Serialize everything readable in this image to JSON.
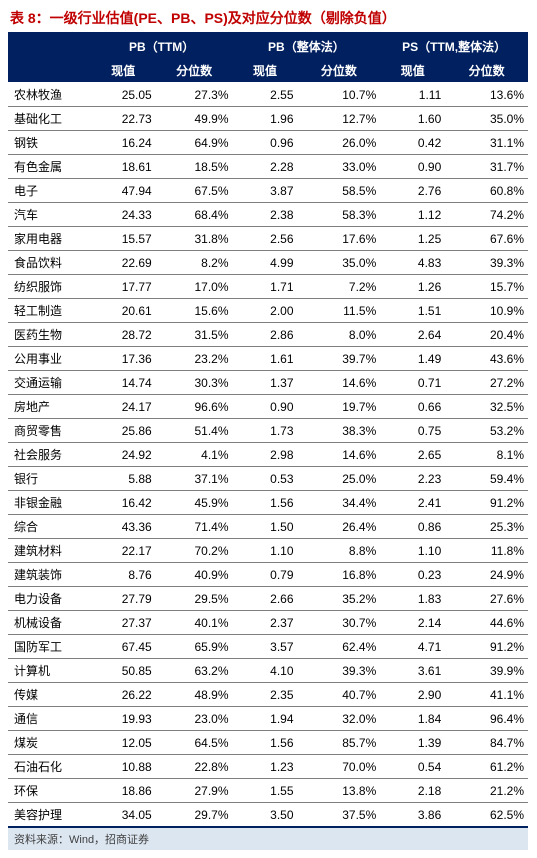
{
  "title": "表 8：一级行业估值(PE、PB、PS)及对应分位数（剔除负值）",
  "footer": "资料来源：Wind，招商证券",
  "colors": {
    "title": "#c00000",
    "headerBg": "#002060",
    "headerText": "#ffffff",
    "rowBorder": "#7f7f7f",
    "footerBg": "#dce6f1"
  },
  "groupHeaders": [
    {
      "label": "PB（TTM）",
      "span": 2
    },
    {
      "label": "PB（整体法）",
      "span": 2
    },
    {
      "label": "PS（TTM,整体法）",
      "span": 2
    }
  ],
  "subHeaders": [
    "现值",
    "分位数",
    "现值",
    "分位数",
    "现值",
    "分位数"
  ],
  "rows": [
    {
      "label": "农林牧渔",
      "v1": "25.05",
      "p1": "27.3%",
      "v2": "2.55",
      "p2": "10.7%",
      "v3": "1.11",
      "p3": "13.6%"
    },
    {
      "label": "基础化工",
      "v1": "22.73",
      "p1": "49.9%",
      "v2": "1.96",
      "p2": "12.7%",
      "v3": "1.60",
      "p3": "35.0%"
    },
    {
      "label": "钢铁",
      "v1": "16.24",
      "p1": "64.9%",
      "v2": "0.96",
      "p2": "26.0%",
      "v3": "0.42",
      "p3": "31.1%"
    },
    {
      "label": "有色金属",
      "v1": "18.61",
      "p1": "18.5%",
      "v2": "2.28",
      "p2": "33.0%",
      "v3": "0.90",
      "p3": "31.7%"
    },
    {
      "label": "电子",
      "v1": "47.94",
      "p1": "67.5%",
      "v2": "3.87",
      "p2": "58.5%",
      "v3": "2.76",
      "p3": "60.8%"
    },
    {
      "label": "汽车",
      "v1": "24.33",
      "p1": "68.4%",
      "v2": "2.38",
      "p2": "58.3%",
      "v3": "1.12",
      "p3": "74.2%"
    },
    {
      "label": "家用电器",
      "v1": "15.57",
      "p1": "31.8%",
      "v2": "2.56",
      "p2": "17.6%",
      "v3": "1.25",
      "p3": "67.6%"
    },
    {
      "label": "食品饮料",
      "v1": "22.69",
      "p1": "8.2%",
      "v2": "4.99",
      "p2": "35.0%",
      "v3": "4.83",
      "p3": "39.3%"
    },
    {
      "label": "纺织服饰",
      "v1": "17.77",
      "p1": "17.0%",
      "v2": "1.71",
      "p2": "7.2%",
      "v3": "1.26",
      "p3": "15.7%"
    },
    {
      "label": "轻工制造",
      "v1": "20.61",
      "p1": "15.6%",
      "v2": "2.00",
      "p2": "11.5%",
      "v3": "1.51",
      "p3": "10.9%"
    },
    {
      "label": "医药生物",
      "v1": "28.72",
      "p1": "31.5%",
      "v2": "2.86",
      "p2": "8.0%",
      "v3": "2.64",
      "p3": "20.4%"
    },
    {
      "label": "公用事业",
      "v1": "17.36",
      "p1": "23.2%",
      "v2": "1.61",
      "p2": "39.7%",
      "v3": "1.49",
      "p3": "43.6%"
    },
    {
      "label": "交通运输",
      "v1": "14.74",
      "p1": "30.3%",
      "v2": "1.37",
      "p2": "14.6%",
      "v3": "0.71",
      "p3": "27.2%"
    },
    {
      "label": "房地产",
      "v1": "24.17",
      "p1": "96.6%",
      "v2": "0.90",
      "p2": "19.7%",
      "v3": "0.66",
      "p3": "32.5%"
    },
    {
      "label": "商贸零售",
      "v1": "25.86",
      "p1": "51.4%",
      "v2": "1.73",
      "p2": "38.3%",
      "v3": "0.75",
      "p3": "53.2%"
    },
    {
      "label": "社会服务",
      "v1": "24.92",
      "p1": "4.1%",
      "v2": "2.98",
      "p2": "14.6%",
      "v3": "2.65",
      "p3": "8.1%"
    },
    {
      "label": "银行",
      "v1": "5.88",
      "p1": "37.1%",
      "v2": "0.53",
      "p2": "25.0%",
      "v3": "2.23",
      "p3": "59.4%"
    },
    {
      "label": "非银金融",
      "v1": "16.42",
      "p1": "45.9%",
      "v2": "1.56",
      "p2": "34.4%",
      "v3": "2.41",
      "p3": "91.2%"
    },
    {
      "label": "综合",
      "v1": "43.36",
      "p1": "71.4%",
      "v2": "1.50",
      "p2": "26.4%",
      "v3": "0.86",
      "p3": "25.3%"
    },
    {
      "label": "建筑材料",
      "v1": "22.17",
      "p1": "70.2%",
      "v2": "1.10",
      "p2": "8.8%",
      "v3": "1.10",
      "p3": "11.8%"
    },
    {
      "label": "建筑装饰",
      "v1": "8.76",
      "p1": "40.9%",
      "v2": "0.79",
      "p2": "16.8%",
      "v3": "0.23",
      "p3": "24.9%"
    },
    {
      "label": "电力设备",
      "v1": "27.79",
      "p1": "29.5%",
      "v2": "2.66",
      "p2": "35.2%",
      "v3": "1.83",
      "p3": "27.6%"
    },
    {
      "label": "机械设备",
      "v1": "27.37",
      "p1": "40.1%",
      "v2": "2.37",
      "p2": "30.7%",
      "v3": "2.14",
      "p3": "44.6%"
    },
    {
      "label": "国防军工",
      "v1": "67.45",
      "p1": "65.9%",
      "v2": "3.57",
      "p2": "62.4%",
      "v3": "4.71",
      "p3": "91.2%"
    },
    {
      "label": "计算机",
      "v1": "50.85",
      "p1": "63.2%",
      "v2": "4.10",
      "p2": "39.3%",
      "v3": "3.61",
      "p3": "39.9%"
    },
    {
      "label": "传媒",
      "v1": "26.22",
      "p1": "48.9%",
      "v2": "2.35",
      "p2": "40.7%",
      "v3": "2.90",
      "p3": "41.1%"
    },
    {
      "label": "通信",
      "v1": "19.93",
      "p1": "23.0%",
      "v2": "1.94",
      "p2": "32.0%",
      "v3": "1.84",
      "p3": "96.4%"
    },
    {
      "label": "煤炭",
      "v1": "12.05",
      "p1": "64.5%",
      "v2": "1.56",
      "p2": "85.7%",
      "v3": "1.39",
      "p3": "84.7%"
    },
    {
      "label": "石油石化",
      "v1": "10.88",
      "p1": "22.8%",
      "v2": "1.23",
      "p2": "70.0%",
      "v3": "0.54",
      "p3": "61.2%"
    },
    {
      "label": "环保",
      "v1": "18.86",
      "p1": "27.9%",
      "v2": "1.55",
      "p2": "13.8%",
      "v3": "2.18",
      "p3": "21.2%"
    },
    {
      "label": "美容护理",
      "v1": "34.05",
      "p1": "29.7%",
      "v2": "3.50",
      "p2": "37.5%",
      "v3": "3.86",
      "p3": "62.5%"
    }
  ]
}
